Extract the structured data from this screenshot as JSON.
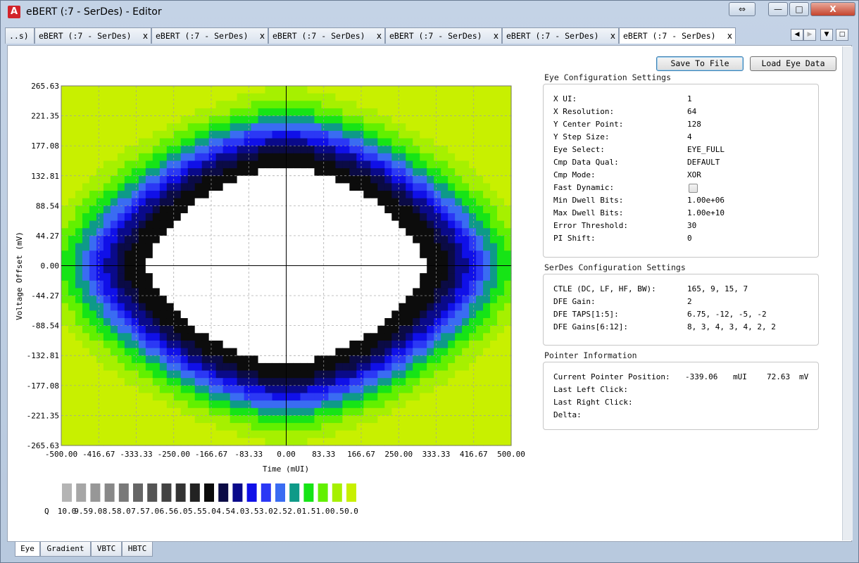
{
  "window": {
    "title": "eBERT (:7 - SerDes) - Editor",
    "app_icon": "A",
    "controls": {
      "swap": "⇔",
      "minimize": "—",
      "maximize": "□",
      "close": "X"
    }
  },
  "tabs": [
    {
      "label": "..s)",
      "close": ""
    },
    {
      "label": "eBERT (:7 - SerDes)",
      "close": "x"
    },
    {
      "label": "eBERT (:7 - SerDes)",
      "close": "x"
    },
    {
      "label": "eBERT (:7 - SerDes)",
      "close": "x"
    },
    {
      "label": "eBERT (:7 - SerDes)",
      "close": "x"
    },
    {
      "label": "eBERT (:7 - SerDes)",
      "close": "x"
    },
    {
      "label": "eBERT (:7 - SerDes)",
      "close": "x"
    }
  ],
  "tab_nav": {
    "left": "◀",
    "right": "▶",
    "down": "▼",
    "restore": "□"
  },
  "buttons": {
    "save": "Save To File",
    "load": "Load Eye Data"
  },
  "eye_config": {
    "title": "Eye Configuration Settings",
    "rows": [
      {
        "label": "X UI:",
        "value": "1"
      },
      {
        "label": "X Resolution:",
        "value": "64"
      },
      {
        "label": "Y Center Point:",
        "value": "128"
      },
      {
        "label": "Y Step Size:",
        "value": "4"
      },
      {
        "label": "Eye Select:",
        "value": "EYE_FULL"
      },
      {
        "label": "Cmp Data Qual:",
        "value": "DEFAULT"
      },
      {
        "label": "Cmp Mode:",
        "value": "XOR"
      },
      {
        "label": "Fast Dynamic:",
        "value": ""
      },
      {
        "label": "Min Dwell Bits:",
        "value": "1.00e+06"
      },
      {
        "label": "Max Dwell Bits:",
        "value": "1.00e+10"
      },
      {
        "label": "Error Threshold:",
        "value": "30"
      },
      {
        "label": "PI Shift:",
        "value": "0"
      }
    ],
    "fast_dynamic_checked": false
  },
  "serdes_config": {
    "title": "SerDes Configuration Settings",
    "rows": [
      {
        "label": "CTLE (DC, LF, HF, BW):",
        "value": "165, 9, 15, 7"
      },
      {
        "label": "DFE Gain:",
        "value": "2"
      },
      {
        "label": "DFE TAPS[1:5]:",
        "value": "6.75, -12, -5, -2"
      },
      {
        "label": "DFE Gains[6:12]:",
        "value": "8, 3, 4, 3, 4, 2, 2"
      }
    ]
  },
  "pointer_info": {
    "title": "Pointer Information",
    "current_label": "Current Pointer Position:",
    "current_x": "-339.06",
    "current_x_unit": "mUI",
    "current_y": "72.63",
    "current_y_unit": "mV",
    "last_left": "Last Left Click:",
    "last_right": "Last Right Click:",
    "delta": "Delta:"
  },
  "bottom_tabs": [
    "Eye",
    "Gradient",
    "VBTC",
    "HBTC"
  ],
  "chart_data": {
    "type": "heatmap",
    "xlabel": "Time (mUI)",
    "ylabel": "Voltage Offset (mV)",
    "xlim": [
      -500,
      500
    ],
    "ylim": [
      -265.63,
      265.63
    ],
    "x_ticks": [
      "-500.00",
      "-416.67",
      "-333.33",
      "-250.00",
      "-166.67",
      "-83.33",
      "0.00",
      "83.33",
      "166.67",
      "250.00",
      "333.33",
      "416.67",
      "500.00"
    ],
    "y_ticks": [
      "265.63",
      "221.35",
      "177.08",
      "132.81",
      "88.54",
      "44.27",
      "0.00",
      "-44.27",
      "-88.54",
      "-132.81",
      "-177.08",
      "-221.35",
      "-265.63"
    ],
    "grid": true,
    "eye_open_half_width_mUI": 380,
    "eye_open_half_height_mV": 177,
    "legend_label": "Q",
    "legend": [
      {
        "q": "10.0",
        "color": "#b4b4b4"
      },
      {
        "q": "9.5",
        "color": "#a6a6a6"
      },
      {
        "q": "9.0",
        "color": "#979797"
      },
      {
        "q": "8.5",
        "color": "#888888"
      },
      {
        "q": "8.0",
        "color": "#797979"
      },
      {
        "q": "7.5",
        "color": "#666666"
      },
      {
        "q": "7.0",
        "color": "#555555"
      },
      {
        "q": "6.5",
        "color": "#434343"
      },
      {
        "q": "6.0",
        "color": "#333333"
      },
      {
        "q": "5.5",
        "color": "#222222"
      },
      {
        "q": "5.0",
        "color": "#0c0c0c"
      },
      {
        "q": "4.5",
        "color": "#0b0b45"
      },
      {
        "q": "4.0",
        "color": "#0a0a8a"
      },
      {
        "q": "3.5",
        "color": "#1010e8"
      },
      {
        "q": "3.0",
        "color": "#2b38f5"
      },
      {
        "q": "2.5",
        "color": "#3a6cf2"
      },
      {
        "q": "2.0",
        "color": "#0e9a88"
      },
      {
        "q": "1.5",
        "color": "#16e416"
      },
      {
        "q": "1.0",
        "color": "#62f000"
      },
      {
        "q": "0.5",
        "color": "#a6f000"
      },
      {
        "q": "0.0",
        "color": "#c8f000"
      }
    ]
  }
}
